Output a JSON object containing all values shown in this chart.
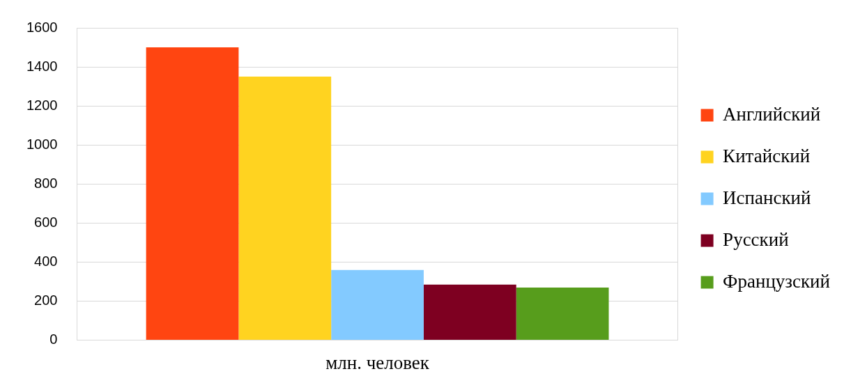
{
  "chart_data": {
    "type": "bar",
    "categories": [
      "млн. человек"
    ],
    "series": [
      {
        "name": "Английский",
        "color": "#ff4511",
        "values": [
          1500
        ]
      },
      {
        "name": "Китайский",
        "color": "#ffd320",
        "values": [
          1350
        ]
      },
      {
        "name": "Испанский",
        "color": "#83caff",
        "values": [
          360
        ]
      },
      {
        "name": "Русский",
        "color": "#7e0021",
        "values": [
          285
        ]
      },
      {
        "name": "Французский",
        "color": "#579d1c",
        "values": [
          270
        ]
      }
    ],
    "ylim": [
      0,
      1600
    ],
    "yticks": [
      0,
      200,
      400,
      600,
      800,
      1000,
      1200,
      1400,
      1600
    ],
    "grid": "y",
    "legend": "right"
  }
}
